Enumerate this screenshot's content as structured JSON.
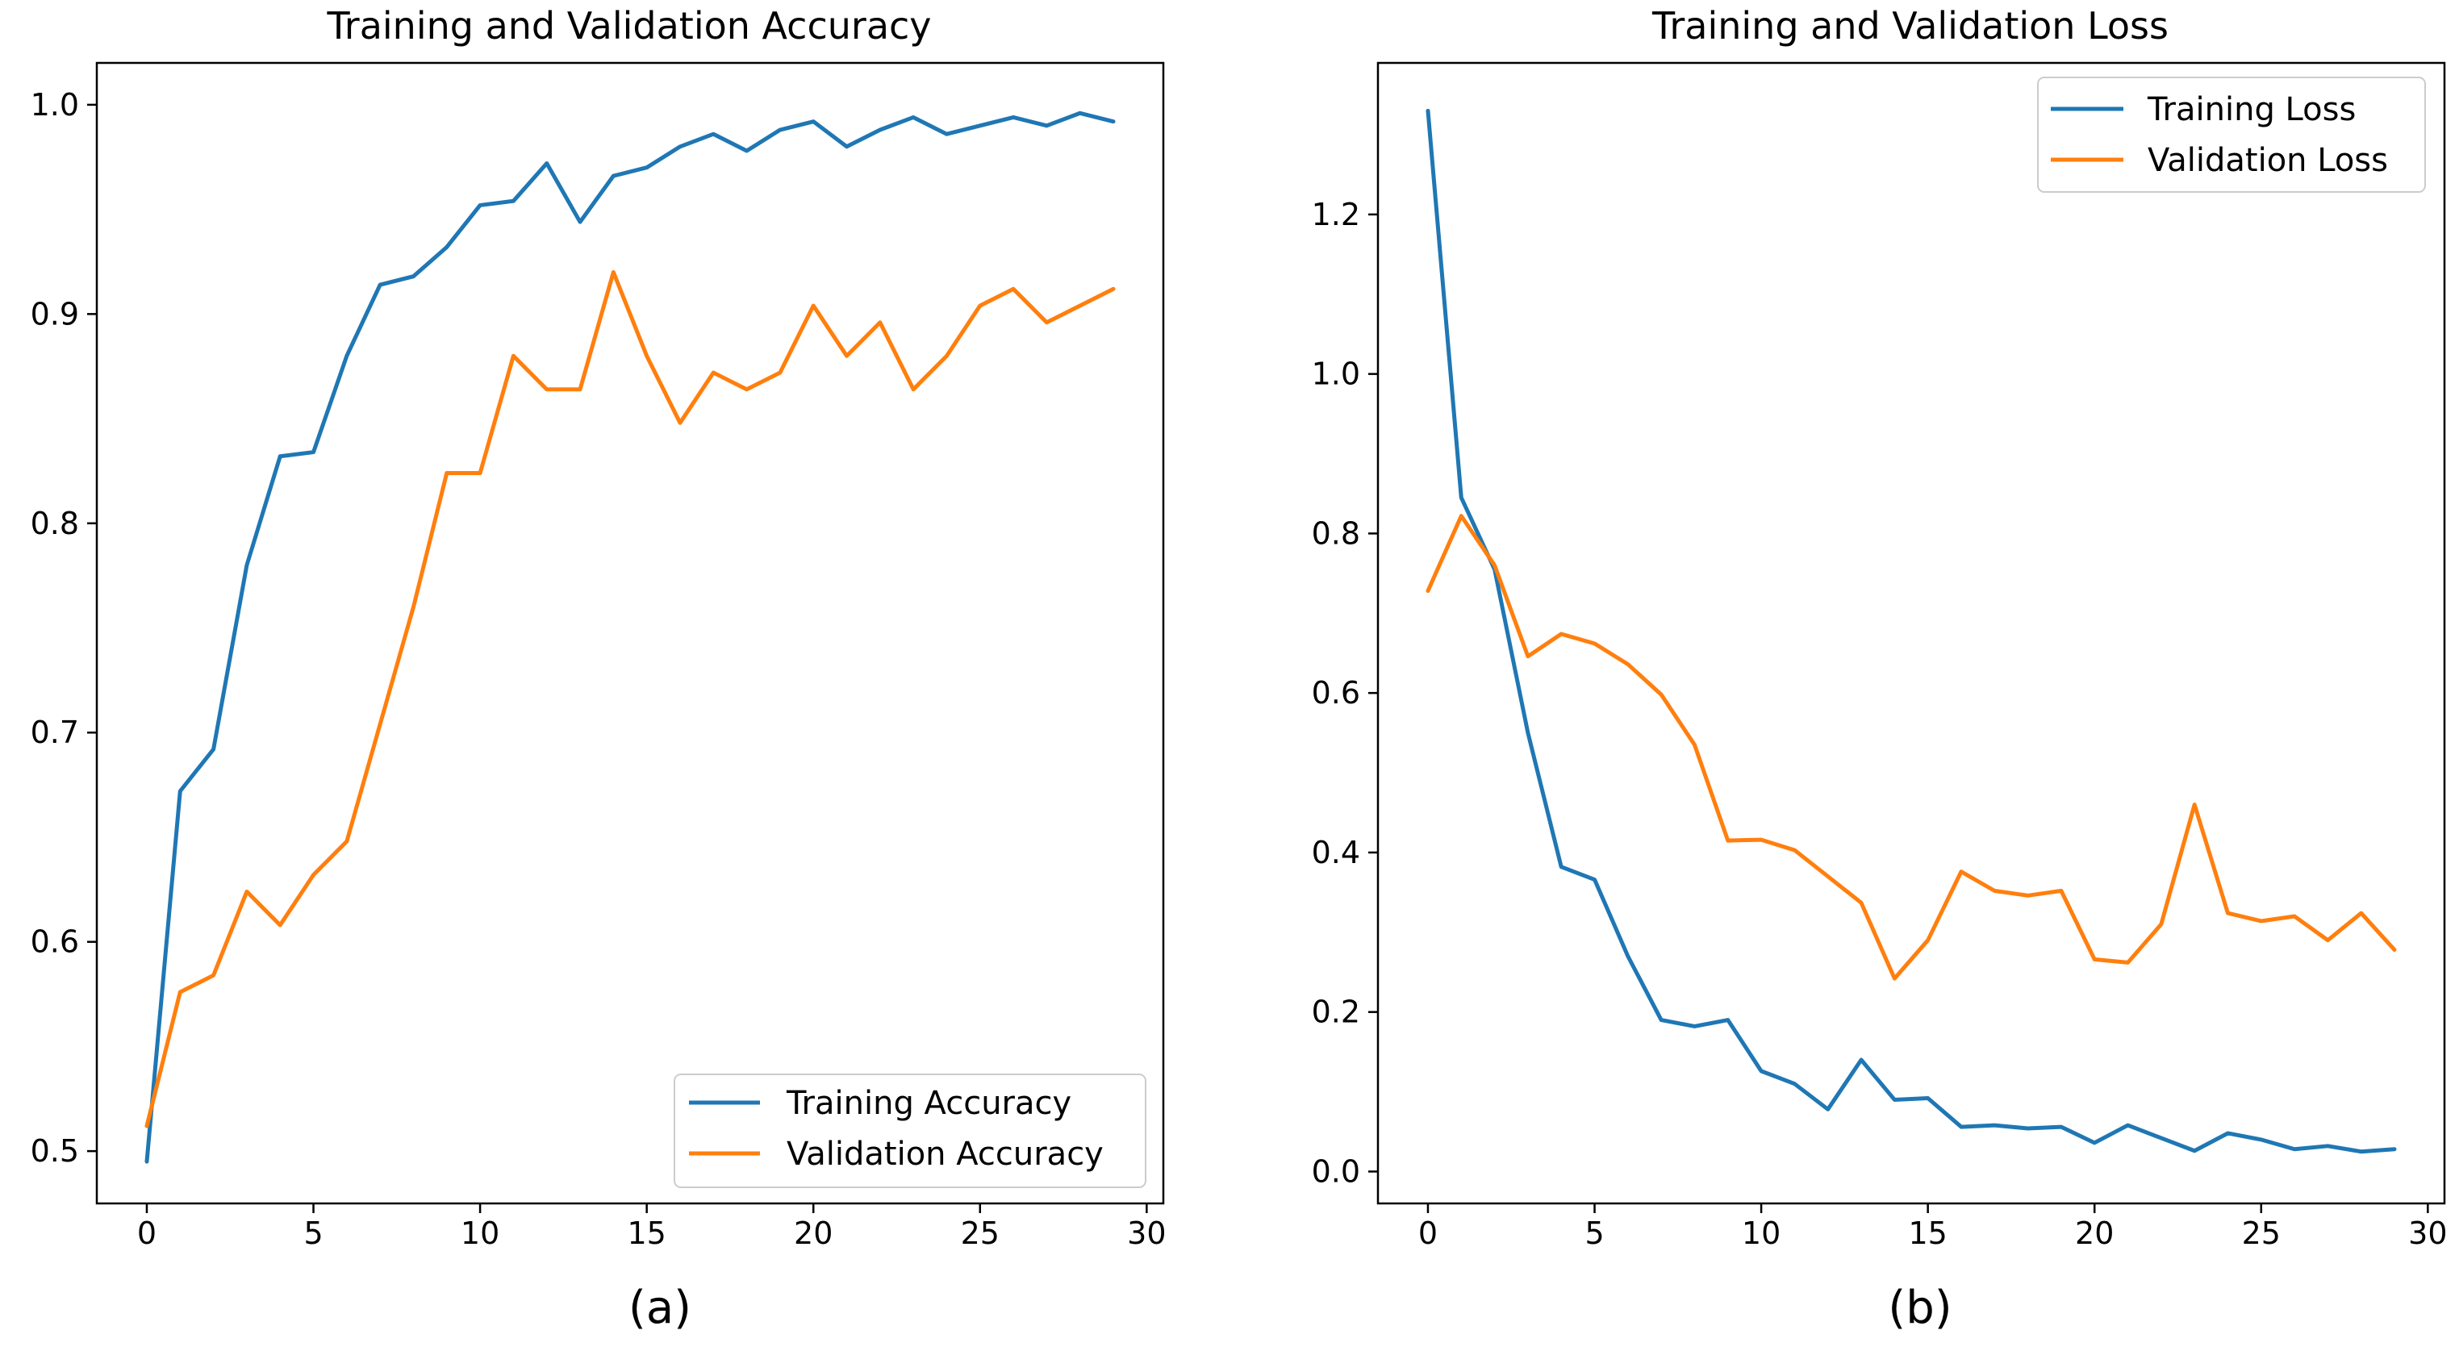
{
  "chart_data": [
    {
      "type": "line",
      "title": "Training and Validation Accuracy",
      "caption": "(a)",
      "xlabel": "",
      "ylabel": "",
      "xlim": [
        -1.5,
        30.5
      ],
      "ylim": [
        0.475,
        1.02
      ],
      "xticks": [
        0,
        5,
        10,
        15,
        20,
        25,
        30
      ],
      "yticks": [
        0.5,
        0.6,
        0.7,
        0.8,
        0.9,
        1.0
      ],
      "ytick_labels": [
        "0.5",
        "0.6",
        "0.7",
        "0.8",
        "0.9",
        "1.0"
      ],
      "legend_position": "lower-right",
      "x": [
        0,
        1,
        2,
        3,
        4,
        5,
        6,
        7,
        8,
        9,
        10,
        11,
        12,
        13,
        14,
        15,
        16,
        17,
        18,
        19,
        20,
        21,
        22,
        23,
        24,
        25,
        26,
        27,
        28,
        29
      ],
      "series": [
        {
          "name": "Training Accuracy",
          "color": "#1f77b4",
          "values": [
            0.495,
            0.672,
            0.692,
            0.78,
            0.832,
            0.834,
            0.88,
            0.914,
            0.918,
            0.932,
            0.952,
            0.954,
            0.972,
            0.944,
            0.966,
            0.97,
            0.98,
            0.986,
            0.978,
            0.988,
            0.992,
            0.98,
            0.988,
            0.994,
            0.986,
            0.99,
            0.994,
            0.99,
            0.996,
            0.992
          ]
        },
        {
          "name": "Validation Accuracy",
          "color": "#ff7f0e",
          "values": [
            0.512,
            0.576,
            0.584,
            0.624,
            0.608,
            0.632,
            0.648,
            0.704,
            0.76,
            0.824,
            0.824,
            0.88,
            0.864,
            0.864,
            0.92,
            0.88,
            0.848,
            0.872,
            0.864,
            0.872,
            0.904,
            0.88,
            0.896,
            0.864,
            0.88,
            0.904,
            0.912,
            0.896,
            0.904,
            0.912
          ]
        }
      ]
    },
    {
      "type": "line",
      "title": "Training and Validation Loss",
      "caption": "(b)",
      "xlabel": "",
      "ylabel": "",
      "xlim": [
        -1.5,
        30.5
      ],
      "ylim": [
        -0.04,
        1.39
      ],
      "xticks": [
        0,
        5,
        10,
        15,
        20,
        25,
        30
      ],
      "yticks": [
        0.0,
        0.2,
        0.4,
        0.6,
        0.8,
        1.0,
        1.2
      ],
      "ytick_labels": [
        "0.0",
        "0.2",
        "0.4",
        "0.6",
        "0.8",
        "1.0",
        "1.2"
      ],
      "legend_position": "upper-right",
      "x": [
        0,
        1,
        2,
        3,
        4,
        5,
        6,
        7,
        8,
        9,
        10,
        11,
        12,
        13,
        14,
        15,
        16,
        17,
        18,
        19,
        20,
        21,
        22,
        23,
        24,
        25,
        26,
        27,
        28,
        29
      ],
      "series": [
        {
          "name": "Training Loss",
          "color": "#1f77b4",
          "values": [
            1.33,
            0.845,
            0.755,
            0.55,
            0.382,
            0.366,
            0.27,
            0.19,
            0.182,
            0.19,
            0.126,
            0.11,
            0.078,
            0.14,
            0.09,
            0.092,
            0.056,
            0.058,
            0.054,
            0.056,
            0.036,
            0.058,
            0.042,
            0.026,
            0.048,
            0.04,
            0.028,
            0.032,
            0.025,
            0.028
          ]
        },
        {
          "name": "Validation Loss",
          "color": "#ff7f0e",
          "values": [
            0.728,
            0.822,
            0.76,
            0.646,
            0.674,
            0.662,
            0.636,
            0.598,
            0.535,
            0.415,
            0.416,
            0.403,
            0.37,
            0.337,
            0.242,
            0.29,
            0.376,
            0.352,
            0.346,
            0.352,
            0.266,
            0.262,
            0.31,
            0.46,
            0.324,
            0.314,
            0.32,
            0.29,
            0.324,
            0.278
          ]
        }
      ]
    }
  ]
}
